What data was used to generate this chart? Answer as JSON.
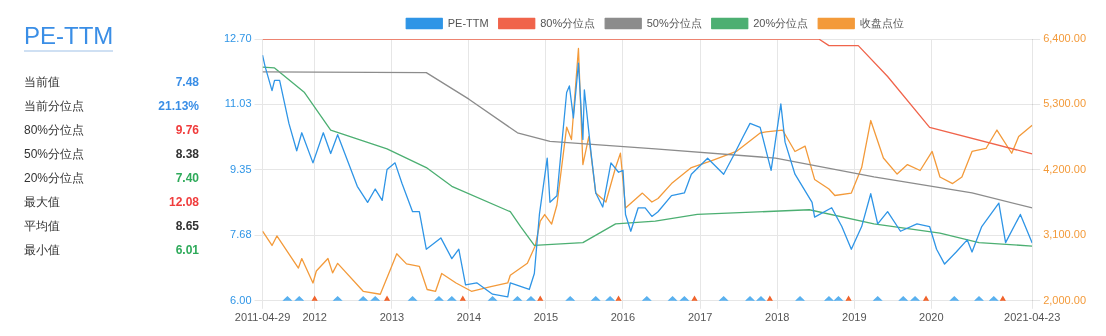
{
  "chart_data": [
    {
      "type": "other",
      "title": "PE-TTM",
      "categories": [
        "当前值",
        "当前分位点",
        "80%分位点",
        "50%分位点",
        "20%分位点",
        "最大值",
        "平均值",
        "最小值"
      ],
      "value_labels": [
        "7.48",
        "21.13%",
        "9.76",
        "8.38",
        "7.40",
        "12.08",
        "8.65",
        "6.01"
      ],
      "colors": [
        "#3a8ee6",
        "#3a8ee6",
        "#f03c3c",
        "#333333",
        "#2eaa5a",
        "#f03c3c",
        "#333333",
        "#2eaa5a"
      ]
    },
    {
      "type": "line",
      "legend": "top",
      "grid": true,
      "marker": "none",
      "xlim": [
        "2011-04-29",
        "2021-04-23"
      ],
      "xticks": [
        "2011-04-29",
        {
          "value": "2012-01-01",
          "label": "2012"
        },
        {
          "value": "2013-01-01",
          "label": "2013"
        },
        {
          "value": "2014-01-01",
          "label": "2014"
        },
        {
          "value": "2015-01-01",
          "label": "2015"
        },
        {
          "value": "2016-01-01",
          "label": "2016"
        },
        {
          "value": "2017-01-01",
          "label": "2017"
        },
        {
          "value": "2018-01-01",
          "label": "2018"
        },
        {
          "value": "2019-01-01",
          "label": "2019"
        },
        {
          "value": "2020-01-01",
          "label": "2020"
        },
        "2021-04-23"
      ],
      "ylim": [
        6.0,
        12.7
      ],
      "yticks": [
        {
          "value": 6.0,
          "label": "6.00"
        },
        {
          "value": 7.675,
          "label": "7.68"
        },
        {
          "value": 9.35,
          "label": "9.35"
        },
        {
          "value": 11.025,
          "label": "11.03"
        },
        {
          "value": 12.7,
          "label": "12.70"
        }
      ],
      "y2lim": [
        2000,
        6400
      ],
      "y2ticks": [
        {
          "value": 2000,
          "label": "2,000.00"
        },
        {
          "value": 3100,
          "label": "3,100.00"
        },
        {
          "value": 4200,
          "label": "4,200.00"
        },
        {
          "value": 5300,
          "label": "5,300.00"
        },
        {
          "value": 6400,
          "label": "6,400.00"
        }
      ],
      "series": [
        {
          "name": "PE-TTM",
          "color": "#2f95e6",
          "x": [
            "2011-04-29",
            "2011-05-11",
            "2011-06-13",
            "2011-06-25",
            "2011-07-19",
            "2011-09-01",
            "2011-10-08",
            "2011-11-01",
            "2011-12-24",
            "2012-02-11",
            "2012-03-17",
            "2012-04-19",
            "2012-07-21",
            "2012-09-08",
            "2012-10-14",
            "2012-11-16",
            "2012-12-09",
            "2013-01-16",
            "2013-02-18",
            "2013-04-09",
            "2013-05-11",
            "2013-06-13",
            "2013-08-21",
            "2013-10-12",
            "2013-11-14",
            "2013-12-16",
            "2014-02-07",
            "2014-04-23",
            "2014-07-04",
            "2014-07-16",
            "2014-10-14",
            "2014-11-07",
            "2014-12-01",
            "2015-01-07",
            "2015-01-20",
            "2015-02-22",
            "2015-04-09",
            "2015-04-22",
            "2015-05-11",
            "2015-06-04",
            "2015-06-25",
            "2015-07-02",
            "2015-08-04",
            "2015-08-25",
            "2015-09-27",
            "2015-11-05",
            "2015-12-11",
            "2016-01-01",
            "2016-01-13",
            "2016-02-07",
            "2016-03-13",
            "2016-04-15",
            "2016-05-17",
            "2016-06-15",
            "2016-08-18",
            "2016-10-18",
            "2016-11-20",
            "2017-02-05",
            "2017-04-22",
            "2017-06-08",
            "2017-07-23",
            "2017-08-25",
            "2017-10-12",
            "2017-12-03",
            "2018-01-18",
            "2018-02-07",
            "2018-03-26",
            "2018-06-15",
            "2018-06-27",
            "2018-09-16",
            "2018-11-03",
            "2018-12-18",
            "2019-02-05",
            "2019-03-20",
            "2019-04-22",
            "2019-06-08",
            "2019-08-08",
            "2019-10-25",
            "2019-12-24",
            "2020-01-26",
            "2020-03-04",
            "2020-04-28",
            "2020-06-19",
            "2020-07-12",
            "2020-08-27",
            "2020-11-16",
            "2020-12-18",
            "2021-02-26",
            "2021-04-23"
          ],
          "values": [
            12.29,
            12.0,
            11.38,
            11.64,
            11.64,
            10.54,
            9.84,
            10.3,
            9.53,
            10.3,
            9.77,
            10.25,
            8.93,
            8.52,
            8.86,
            8.57,
            9.36,
            9.53,
            9.0,
            8.28,
            8.28,
            7.32,
            7.61,
            7.08,
            7.32,
            6.41,
            6.46,
            6.17,
            6.1,
            6.46,
            6.29,
            6.7,
            8.21,
            9.65,
            8.52,
            8.69,
            11.33,
            11.5,
            10.68,
            12.08,
            10.13,
            11.4,
            9.72,
            8.76,
            8.4,
            9.53,
            9.29,
            9.34,
            8.21,
            7.78,
            8.38,
            8.38,
            8.16,
            8.28,
            8.69,
            8.76,
            9.24,
            9.65,
            9.24,
            9.72,
            10.2,
            10.54,
            10.44,
            9.34,
            11.04,
            10.06,
            9.24,
            8.52,
            8.14,
            8.38,
            7.9,
            7.32,
            7.9,
            8.74,
            7.97,
            8.28,
            7.78,
            7.97,
            7.9,
            7.32,
            6.94,
            7.25,
            7.56,
            7.25,
            7.9,
            8.5,
            7.49,
            8.21,
            7.48
          ]
        },
        {
          "name": "80%分位点",
          "color": "#f0644b",
          "x": [
            "2011-04-29",
            "2018-07-17",
            "2018-09-03",
            "2019-01-20",
            "2019-06-08",
            "2019-12-24",
            "2021-04-23"
          ],
          "values": [
            12.7,
            12.7,
            12.53,
            12.53,
            11.74,
            10.44,
            9.76
          ]
        },
        {
          "name": "50%分位点",
          "color": "#8c8c8c",
          "x": [
            "2011-04-29",
            "2013-06-13",
            "2014-01-01",
            "2014-08-19",
            "2015-01-20",
            "2016-06-02",
            "2017-12-24",
            "2019-04-04",
            "2020-07-12",
            "2021-04-23"
          ],
          "values": [
            11.86,
            11.84,
            11.16,
            10.3,
            10.08,
            9.89,
            9.65,
            9.17,
            8.76,
            8.38
          ]
        },
        {
          "name": "20%分位点",
          "color": "#4caf72",
          "x": [
            "2011-04-29",
            "2011-06-25",
            "2011-11-14",
            "2012-03-17",
            "2012-12-09",
            "2013-06-13",
            "2013-10-12",
            "2014-07-16",
            "2014-09-03",
            "2014-11-07",
            "2015-06-25",
            "2015-11-27",
            "2016-06-02",
            "2016-12-18",
            "2018-06-02",
            "2019-04-04",
            "2020-02-11",
            "2020-08-14",
            "2021-04-23"
          ],
          "values": [
            11.98,
            11.96,
            11.33,
            10.37,
            9.89,
            9.41,
            8.93,
            8.28,
            7.9,
            7.42,
            7.49,
            7.97,
            8.04,
            8.21,
            8.33,
            7.97,
            7.73,
            7.49,
            7.4
          ]
        },
        {
          "name": "收盘点位",
          "color": "#f39a3a",
          "axis": "y2",
          "x": [
            "2011-04-29",
            "2011-06-13",
            "2011-07-06",
            "2011-10-16",
            "2011-11-01",
            "2011-12-24",
            "2012-01-09",
            "2012-03-04",
            "2012-03-26",
            "2012-04-19",
            "2012-08-18",
            "2012-11-07",
            "2012-12-22",
            "2013-01-24",
            "2013-03-11",
            "2013-05-11",
            "2013-06-17",
            "2013-07-27",
            "2013-08-25",
            "2013-11-01",
            "2014-01-13",
            "2014-04-15",
            "2014-07-04",
            "2014-07-16",
            "2014-10-05",
            "2014-11-12",
            "2014-12-05",
            "2014-12-26",
            "2015-01-28",
            "2015-02-22",
            "2015-04-09",
            "2015-05-02",
            "2015-06-04",
            "2015-06-25",
            "2015-07-23",
            "2015-08-25",
            "2015-10-12",
            "2015-11-27",
            "2015-12-20",
            "2016-01-13",
            "2016-04-02",
            "2016-05-17",
            "2016-06-15",
            "2016-08-18",
            "2016-11-20",
            "2017-02-22",
            "2017-06-21",
            "2017-10-12",
            "2017-11-09",
            "2018-01-26",
            "2018-03-26",
            "2018-05-13",
            "2018-06-27",
            "2018-09-03",
            "2018-10-01",
            "2018-12-18",
            "2019-02-05",
            "2019-03-20",
            "2019-05-19",
            "2019-07-23",
            "2019-09-10",
            "2019-11-09",
            "2020-01-05",
            "2020-02-11",
            "2020-04-11",
            "2020-05-25",
            "2020-07-12",
            "2020-09-16",
            "2020-11-07",
            "2021-01-16",
            "2021-02-18",
            "2021-04-23"
          ],
          "values": [
            3170,
            2930,
            3090,
            2550,
            2710,
            2300,
            2500,
            2710,
            2470,
            2630,
            2160,
            2110,
            2500,
            2790,
            2620,
            2580,
            2190,
            2160,
            2460,
            2300,
            2160,
            2240,
            2300,
            2430,
            2630,
            2930,
            3340,
            3450,
            3290,
            3610,
            4920,
            4710,
            6240,
            4290,
            4760,
            3810,
            3660,
            4240,
            4480,
            3560,
            3810,
            3660,
            3720,
            3970,
            4240,
            4350,
            4510,
            4820,
            4840,
            4870,
            4510,
            4600,
            4040,
            3880,
            3770,
            3810,
            4240,
            5030,
            4400,
            4130,
            4290,
            4190,
            4510,
            4080,
            3970,
            4080,
            4510,
            4560,
            4870,
            4480,
            4760,
            4950
          ]
        },
        {
          "type": "scatter",
          "color": "#5ab1ef",
          "marker": "diamond",
          "x": [
            "2011-08-25",
            "2011-10-20",
            "2012-04-19",
            "2012-08-18",
            "2012-10-14",
            "2013-04-09",
            "2013-08-12",
            "2013-10-12",
            "2014-04-23",
            "2014-08-19",
            "2014-10-22",
            "2015-04-26",
            "2015-08-25",
            "2015-11-01",
            "2016-04-23",
            "2016-08-23",
            "2016-10-18",
            "2017-04-22",
            "2017-08-25",
            "2017-10-16",
            "2018-04-19",
            "2018-09-03",
            "2018-10-18",
            "2019-04-22",
            "2019-08-21",
            "2019-10-16",
            "2020-04-19",
            "2020-08-14",
            "2020-10-23"
          ],
          "values": [
            6,
            6,
            6,
            6,
            6,
            6,
            6,
            6,
            6,
            6,
            6,
            6,
            6,
            6,
            6,
            6,
            6,
            6,
            6,
            6,
            6,
            6,
            6,
            6,
            6,
            6,
            6,
            6,
            6
          ]
        },
        {
          "type": "scatter",
          "color": "#f0642d",
          "marker": "triangle",
          "x": [
            "2012-01-01",
            "2012-12-09",
            "2013-12-03",
            "2014-12-05",
            "2015-12-11",
            "2016-12-05",
            "2017-11-27",
            "2018-12-05",
            "2019-12-07",
            "2020-12-05"
          ],
          "values": [
            6,
            6,
            6,
            6,
            6,
            6,
            6,
            6,
            6,
            6
          ]
        }
      ]
    }
  ]
}
